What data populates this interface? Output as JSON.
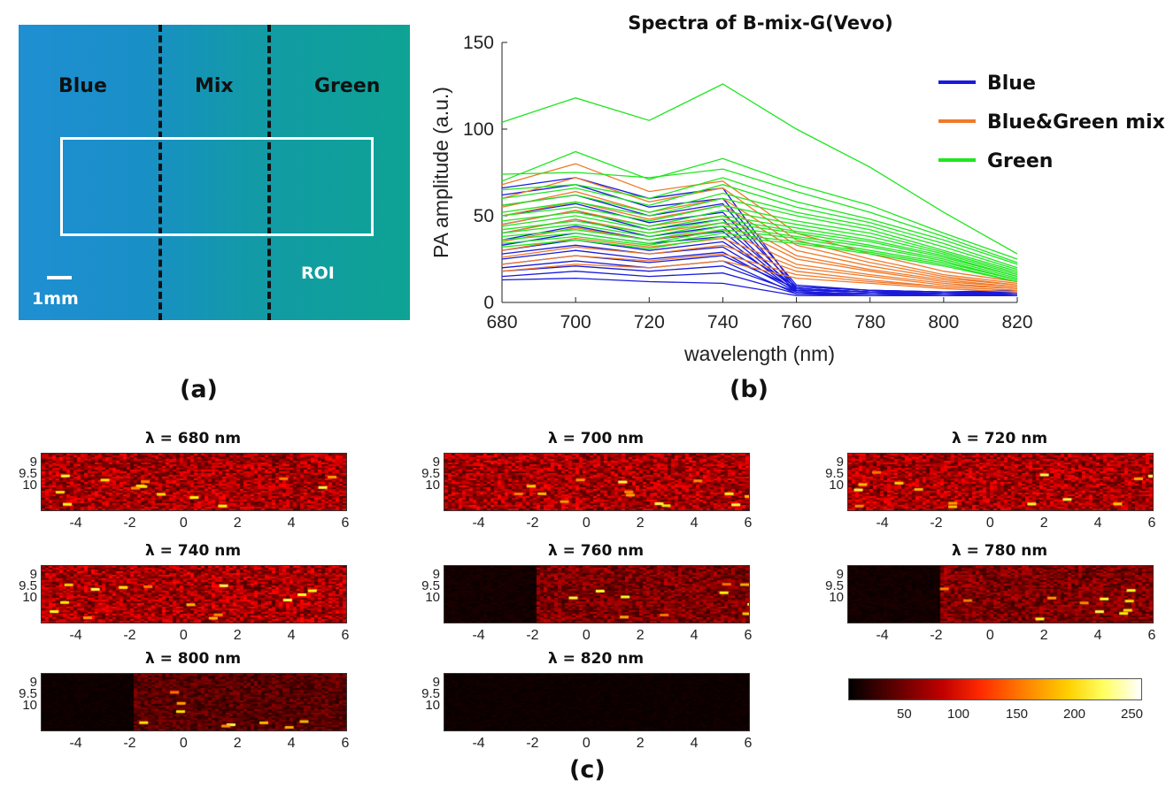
{
  "panel_a": {
    "regions": [
      "Blue",
      "Mix",
      "Green"
    ],
    "roi_label": "ROI",
    "scale_label": "1mm",
    "tag": "(a)"
  },
  "panel_b": {
    "tag": "(b)"
  },
  "panel_c": {
    "tag": "(c)",
    "images": [
      {
        "title": "λ = 680 nm",
        "dark_until": null
      },
      {
        "title": "λ = 700 nm",
        "dark_until": null
      },
      {
        "title": "λ = 720 nm",
        "dark_until": null
      },
      {
        "title": "λ = 740 nm",
        "dark_until": null
      },
      {
        "title": "λ = 760 nm",
        "dark_until": -2
      },
      {
        "title": "λ = 780 nm",
        "dark_until": -2
      },
      {
        "title": "λ = 800 nm",
        "dark_until": -2
      },
      {
        "title": "λ = 820 nm",
        "dark_until": 6
      }
    ],
    "x_ticks": [
      "-4",
      "-2",
      "0",
      "2",
      "4",
      "6"
    ],
    "y_ticks": [
      "9",
      "9.5",
      "10"
    ],
    "colormap": "hot",
    "colorbar_ticks": [
      "50",
      "100",
      "150",
      "200",
      "250"
    ]
  },
  "chart_data": {
    "type": "line",
    "title": "Spectra of B-mix-G(Vevo)",
    "xlabel": "wavelength (nm)",
    "ylabel": "PA amplitude (a.u.)",
    "x": [
      680,
      700,
      720,
      740,
      760,
      780,
      800,
      820
    ],
    "xlim": [
      680,
      820
    ],
    "ylim": [
      0,
      150
    ],
    "x_ticks": [
      680,
      700,
      720,
      740,
      760,
      780,
      800,
      820
    ],
    "y_ticks": [
      0,
      50,
      100,
      150
    ],
    "legend_position": "top-right",
    "grid": false,
    "groups": [
      {
        "name": "Blue",
        "color": "#1a1adc",
        "series": [
          [
            66,
            72,
            60,
            66,
            8,
            6,
            5,
            5
          ],
          [
            62,
            68,
            55,
            60,
            10,
            7,
            6,
            6
          ],
          [
            56,
            62,
            50,
            57,
            7,
            6,
            5,
            5
          ],
          [
            50,
            57,
            46,
            52,
            9,
            7,
            6,
            7
          ],
          [
            45,
            53,
            42,
            48,
            6,
            5,
            5,
            4
          ],
          [
            40,
            48,
            38,
            44,
            8,
            6,
            5,
            6
          ],
          [
            36,
            44,
            36,
            41,
            7,
            6,
            6,
            5
          ],
          [
            33,
            40,
            34,
            38,
            6,
            5,
            4,
            5
          ],
          [
            30,
            36,
            30,
            35,
            9,
            7,
            6,
            6
          ],
          [
            28,
            33,
            28,
            32,
            7,
            6,
            5,
            4
          ],
          [
            25,
            30,
            25,
            29,
            6,
            5,
            5,
            5
          ],
          [
            22,
            27,
            23,
            27,
            8,
            6,
            5,
            6
          ],
          [
            20,
            24,
            20,
            24,
            5,
            5,
            4,
            4
          ],
          [
            18,
            21,
            18,
            21,
            6,
            5,
            5,
            5
          ],
          [
            15,
            18,
            15,
            17,
            5,
            4,
            4,
            4
          ],
          [
            13,
            14,
            12,
            11,
            4,
            4,
            4,
            4
          ]
        ]
      },
      {
        "name": "Blue&Green mix",
        "color": "#f07a2a",
        "series": [
          [
            68,
            80,
            64,
            70,
            40,
            28,
            18,
            12
          ],
          [
            60,
            72,
            58,
            66,
            36,
            25,
            16,
            11
          ],
          [
            55,
            64,
            52,
            60,
            33,
            23,
            15,
            10
          ],
          [
            50,
            58,
            48,
            56,
            30,
            21,
            14,
            10
          ],
          [
            45,
            53,
            44,
            50,
            27,
            19,
            13,
            9
          ],
          [
            40,
            48,
            40,
            46,
            25,
            18,
            12,
            9
          ],
          [
            35,
            43,
            36,
            42,
            22,
            16,
            11,
            8
          ],
          [
            30,
            37,
            32,
            37,
            20,
            15,
            10,
            8
          ],
          [
            26,
            32,
            28,
            33,
            18,
            13,
            9,
            7
          ],
          [
            22,
            27,
            24,
            28,
            16,
            12,
            9,
            7
          ],
          [
            18,
            22,
            20,
            24,
            14,
            11,
            8,
            6
          ]
        ]
      },
      {
        "name": "Green",
        "color": "#1ee61e",
        "series": [
          [
            104,
            118,
            105,
            126,
            100,
            78,
            52,
            28
          ],
          [
            70,
            87,
            71,
            83,
            68,
            56,
            40,
            25
          ],
          [
            74,
            75,
            72,
            77,
            64,
            52,
            38,
            23
          ],
          [
            65,
            68,
            60,
            72,
            58,
            48,
            36,
            22
          ],
          [
            60,
            66,
            56,
            68,
            55,
            46,
            34,
            20
          ],
          [
            56,
            62,
            52,
            63,
            52,
            44,
            32,
            19
          ],
          [
            52,
            58,
            50,
            60,
            50,
            42,
            30,
            18
          ],
          [
            50,
            55,
            47,
            56,
            47,
            40,
            29,
            17
          ],
          [
            47,
            52,
            44,
            53,
            45,
            38,
            28,
            16
          ],
          [
            44,
            50,
            42,
            50,
            43,
            36,
            27,
            15
          ],
          [
            42,
            47,
            40,
            48,
            41,
            35,
            26,
            15
          ],
          [
            40,
            45,
            38,
            46,
            40,
            33,
            25,
            14
          ],
          [
            38,
            42,
            36,
            44,
            38,
            32,
            24,
            13
          ],
          [
            36,
            40,
            34,
            42,
            37,
            30,
            23,
            13
          ],
          [
            34,
            38,
            33,
            40,
            35,
            29,
            22,
            12
          ],
          [
            32,
            36,
            31,
            38,
            34,
            28,
            21,
            12
          ]
        ]
      }
    ]
  }
}
